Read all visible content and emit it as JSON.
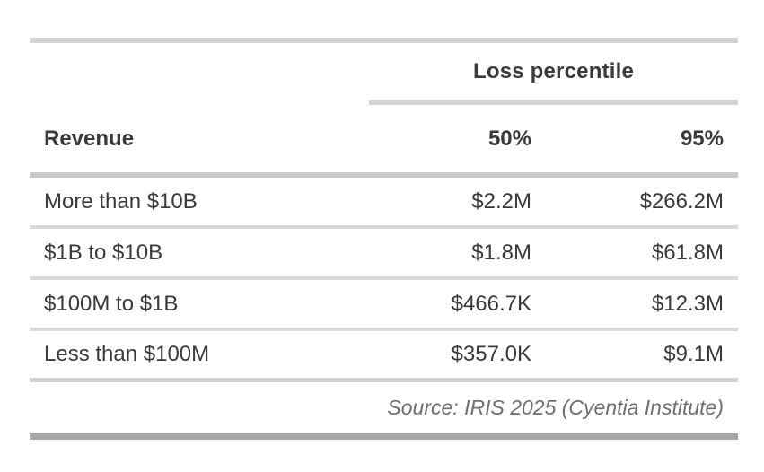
{
  "chart_data": {
    "type": "table",
    "spanner_title": "Loss percentile",
    "columns": [
      "Revenue",
      "50%",
      "95%"
    ],
    "rows": [
      [
        "More than $10B",
        "$2.2M",
        "$266.2M"
      ],
      [
        "$1B to $10B",
        "$1.8M",
        "$61.8M"
      ],
      [
        "$100M to $1B",
        "$466.7K",
        "$12.3M"
      ],
      [
        "Less than $100M",
        "$357.0K",
        "$9.1M"
      ]
    ],
    "source_note": "Source: IRIS 2025 (Cyentia Institute)"
  },
  "colors": {
    "background": "#ffffff",
    "text": "#3a3a3a",
    "source_text": "#6f6f6f",
    "rule_light": "#d2d2d2",
    "rule_row": "#d9d9d9",
    "rule_header": "#c9c9c9",
    "rule_bottom": "#a6a6a6"
  }
}
